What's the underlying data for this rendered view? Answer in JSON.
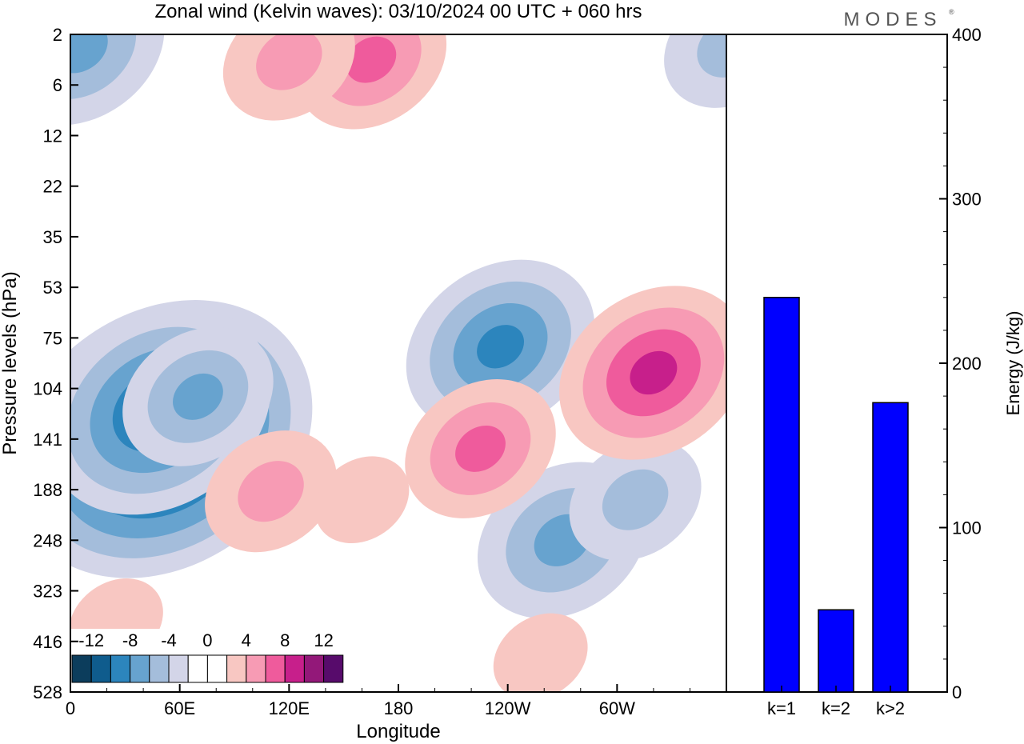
{
  "title": "Zonal wind (Kelvin waves):  03/10/2024  00 UTC  + 060 hrs",
  "brand": "MODES",
  "brand_mark": "®",
  "colors": {
    "neg": [
      "#0c3d5c",
      "#0f5c8d",
      "#2c85bd",
      "#67a3cf",
      "#a4bddb",
      "#d3d5e8"
    ],
    "zero": "#ffffff",
    "pos": [
      "#f8c7c2",
      "#f79bb4",
      "#ef5b9c",
      "#c71f8b",
      "#931879",
      "#570b6b"
    ],
    "bar": "#0000ff"
  },
  "chart_data": [
    {
      "type": "heatmap",
      "xlabel": "Longitude",
      "ylabel": "Pressure levels (hPa)",
      "x_ticks": [
        "0",
        "60E",
        "120E",
        "180",
        "120W",
        "60W"
      ],
      "y_ticks": [
        "2",
        "6",
        "12",
        "22",
        "35",
        "53",
        "75",
        "104",
        "141",
        "188",
        "248",
        "323",
        "416",
        "528"
      ],
      "xlim": [
        0,
        360
      ],
      "legend": {
        "position": "bottom-left",
        "labels": [
          "-12",
          "-8",
          "-4",
          "0",
          "4",
          "8",
          "12"
        ],
        "levels": [
          -12,
          -10,
          -8,
          -6,
          -4,
          -2,
          2,
          4,
          6,
          8,
          10,
          12
        ]
      },
      "features": [
        {
          "lon": 50,
          "level": 141,
          "value": -14
        },
        {
          "lon": 48,
          "level": 120,
          "value": -10
        },
        {
          "lon": 70,
          "level": 110,
          "value": -6
        },
        {
          "lon": 236,
          "level": 80,
          "value": -8
        },
        {
          "lon": 270,
          "level": 248,
          "value": -7
        },
        {
          "lon": 310,
          "level": 200,
          "value": -5
        },
        {
          "lon": 5,
          "level": 3,
          "value": -7
        },
        {
          "lon": 362,
          "level": 3,
          "value": -5
        },
        {
          "lon": 225,
          "level": 150,
          "value": 6
        },
        {
          "lon": 110,
          "level": 190,
          "value": 5
        },
        {
          "lon": 320,
          "level": 95,
          "value": 8
        },
        {
          "lon": 160,
          "level": 200,
          "value": 3
        },
        {
          "lon": 165,
          "level": 4,
          "value": 6
        },
        {
          "lon": 120,
          "level": 4,
          "value": 5
        },
        {
          "lon": 258,
          "level": 450,
          "value": 3
        },
        {
          "lon": 25,
          "level": 380,
          "value": 3
        }
      ]
    },
    {
      "type": "bar",
      "categories": [
        "k=1",
        "k=2",
        "k>2"
      ],
      "values": [
        240,
        50,
        176
      ],
      "ylabel": "Energy (J/kg)",
      "ylim": [
        0,
        400
      ],
      "y_ticks": [
        0,
        100,
        200,
        300,
        400
      ]
    }
  ]
}
